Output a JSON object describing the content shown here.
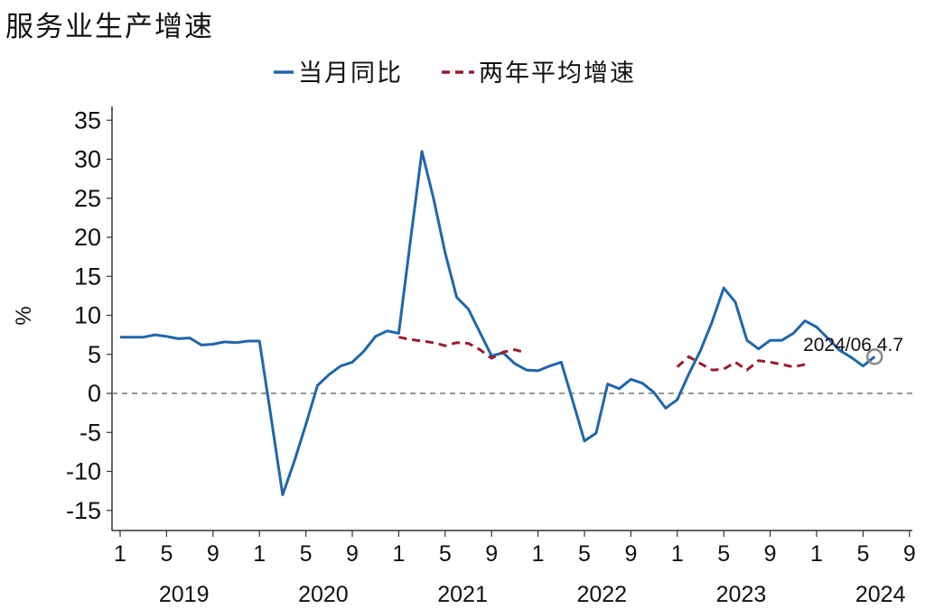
{
  "title": "服务业生产增速",
  "colors": {
    "series1": "#1f66ac",
    "series2": "#9b1b2e",
    "zero_line": "#777777",
    "axis": "#333333",
    "marker": "#888888"
  },
  "chart_data": {
    "type": "line",
    "ylabel": "%",
    "ylim": [
      -17,
      37
    ],
    "yticks": [
      35,
      30,
      25,
      20,
      15,
      10,
      5,
      0,
      -5,
      -10,
      -15
    ],
    "xaxis": {
      "month_ticks": [
        "1",
        "5",
        "9",
        "1",
        "5",
        "9",
        "1",
        "5",
        "9",
        "1",
        "5",
        "9",
        "1",
        "5",
        "9",
        "1",
        "5",
        "9"
      ],
      "years": [
        "2019",
        "2020",
        "2021",
        "2022",
        "2023",
        "2024"
      ]
    },
    "legend": {
      "position": "top-center",
      "entries": [
        "当月同比",
        "两年平均增速"
      ]
    },
    "series": [
      {
        "name": "当月同比",
        "style": "solid",
        "x": [
          "2019-01",
          "2019-02",
          "2019-03",
          "2019-04",
          "2019-05",
          "2019-06",
          "2019-07",
          "2019-08",
          "2019-09",
          "2019-10",
          "2019-11",
          "2019-12",
          "2020-01",
          "2020-02",
          "2020-03",
          "2020-04",
          "2020-05",
          "2020-06",
          "2020-07",
          "2020-08",
          "2020-09",
          "2020-10",
          "2020-11",
          "2020-12",
          "2021-01",
          "2021-02",
          "2021-03",
          "2021-04",
          "2021-05",
          "2021-06",
          "2021-07",
          "2021-08",
          "2021-09",
          "2021-10",
          "2021-11",
          "2021-12",
          "2022-01",
          "2022-02",
          "2022-03",
          "2022-04",
          "2022-05",
          "2022-06",
          "2022-07",
          "2022-08",
          "2022-09",
          "2022-10",
          "2022-11",
          "2022-12",
          "2023-01",
          "2023-02",
          "2023-03",
          "2023-04",
          "2023-05",
          "2023-06",
          "2023-07",
          "2023-08",
          "2023-09",
          "2023-10",
          "2023-11",
          "2023-12",
          "2024-01",
          "2024-02",
          "2024-03",
          "2024-04",
          "2024-05",
          "2024-06"
        ],
        "values": [
          7.2,
          7.2,
          7.2,
          7.5,
          7.3,
          7.0,
          7.1,
          6.2,
          6.3,
          6.6,
          6.5,
          6.7,
          6.7,
          -3.0,
          -13.0,
          -8.7,
          -4.0,
          1.0,
          2.4,
          3.5,
          4.0,
          5.4,
          7.3,
          8.0,
          7.7,
          19.5,
          31.0,
          25.0,
          18.0,
          12.3,
          10.8,
          7.8,
          4.8,
          5.2,
          3.8,
          3.0,
          2.9,
          3.5,
          4.0,
          -1.0,
          -6.1,
          -5.1,
          1.2,
          0.6,
          1.8,
          1.3,
          0.1,
          -1.9,
          -0.8,
          2.5,
          5.5,
          9.2,
          13.5,
          11.7,
          6.8,
          5.7,
          6.8,
          6.8,
          7.7,
          9.3,
          8.5,
          7.0,
          5.5,
          4.6,
          3.5,
          4.7
        ]
      },
      {
        "name": "两年平均增速",
        "style": "dashed",
        "x": [
          "2021-01",
          "2021-02",
          "2021-03",
          "2021-04",
          "2021-05",
          "2021-06",
          "2021-07",
          "2021-08",
          "2021-09",
          "2021-10",
          "2021-11",
          "2021-12",
          "2023-01",
          "2023-02",
          "2023-03",
          "2023-04",
          "2023-05",
          "2023-06",
          "2023-07",
          "2023-08",
          "2023-09",
          "2023-10",
          "2023-11",
          "2023-12"
        ],
        "values": [
          7.2,
          6.9,
          6.7,
          6.5,
          6.1,
          6.5,
          6.4,
          5.6,
          4.5,
          5.3,
          5.6,
          5.2,
          3.4,
          4.7,
          3.8,
          3.0,
          3.1,
          4.0,
          3.0,
          4.2,
          4.0,
          3.7,
          3.4,
          3.7
        ]
      }
    ],
    "annotation": {
      "text": "2024/06 4.7",
      "x": "2024-06",
      "y": 4.7
    }
  }
}
